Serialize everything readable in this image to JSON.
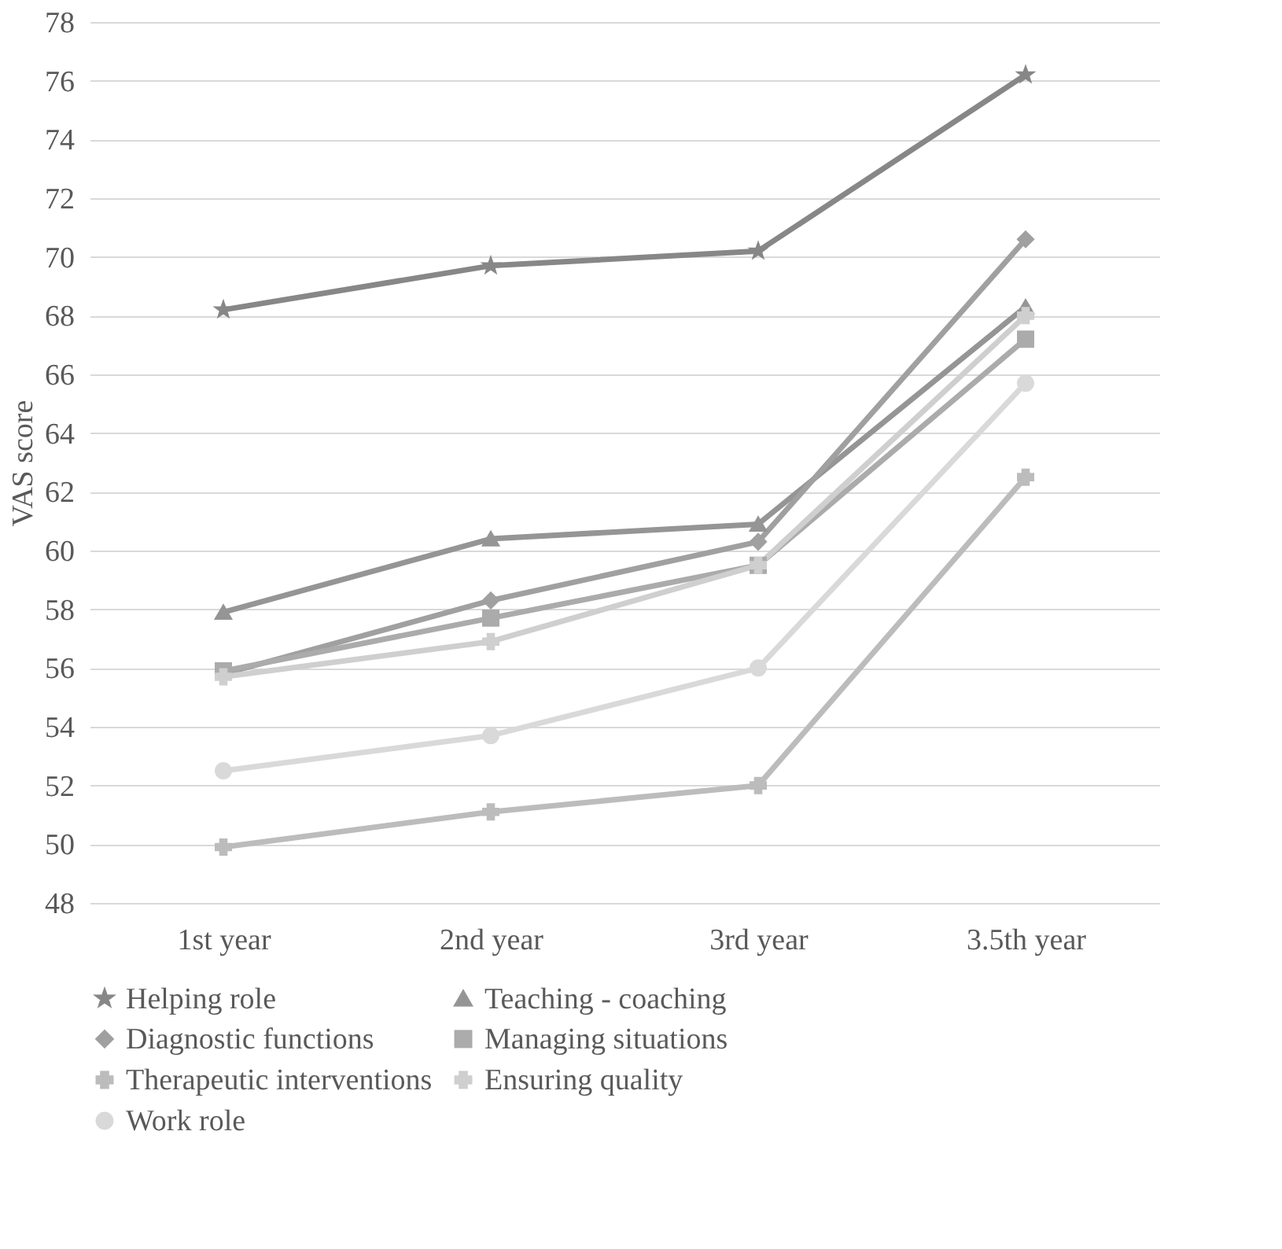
{
  "chart_data": {
    "type": "line",
    "ylabel": "VAS score",
    "categories": [
      "1st year",
      "2nd year",
      "3rd year",
      "3.5th year"
    ],
    "ylim": [
      48,
      78
    ],
    "yticks": [
      48,
      50,
      52,
      54,
      56,
      58,
      60,
      62,
      64,
      66,
      68,
      70,
      72,
      74,
      76,
      78
    ],
    "grid": "y",
    "legend": "bottom",
    "line_style": "solid",
    "series": [
      {
        "name": "Helping role",
        "color": "#878787",
        "marker": "star",
        "values": [
          68.2,
          69.7,
          70.2,
          76.2
        ]
      },
      {
        "name": "Teaching - coaching",
        "color": "#959595",
        "marker": "triangle",
        "values": [
          57.9,
          60.4,
          60.9,
          68.3
        ]
      },
      {
        "name": "Diagnostic functions",
        "color": "#a0a0a0",
        "marker": "diamond",
        "values": [
          55.8,
          58.3,
          60.3,
          70.6
        ]
      },
      {
        "name": "Managing situations",
        "color": "#ababab",
        "marker": "square",
        "values": [
          55.9,
          57.7,
          59.5,
          67.2
        ]
      },
      {
        "name": "Therapeutic interventions",
        "color": "#bcbcbc",
        "marker": "cross",
        "values": [
          49.9,
          51.1,
          52.0,
          62.5
        ]
      },
      {
        "name": "Ensuring quality",
        "color": "#cfcfcf",
        "marker": "cross",
        "values": [
          55.7,
          56.9,
          59.5,
          68.0
        ]
      },
      {
        "name": "Work role",
        "color": "#d9d9d9",
        "marker": "circle",
        "values": [
          52.5,
          53.7,
          56.0,
          65.7
        ]
      }
    ]
  }
}
